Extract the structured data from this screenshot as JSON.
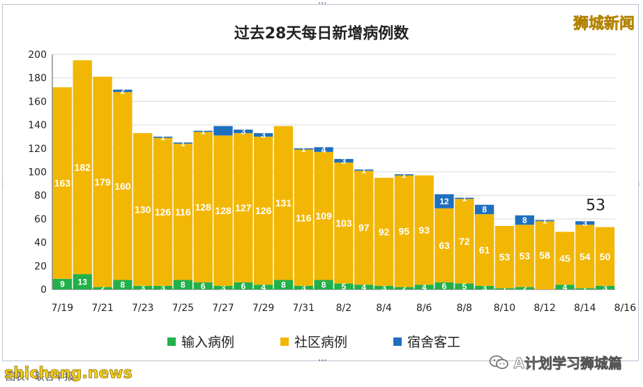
{
  "brand": "狮城新闻",
  "watermark": "shicheng.news",
  "source_note": "图表：联合早报",
  "wechat_account": "A计划学习狮城篇",
  "colors": {
    "imported": "#22b04a",
    "community": "#f2b705",
    "dormitory": "#1f6fbf",
    "label": "#ffffff",
    "grid": "#d9d9d9"
  },
  "chart_data": {
    "type": "bar",
    "stacked": true,
    "title": "过去28天每日新增病例数",
    "xlabel": "",
    "ylabel": "",
    "ylim": [
      0,
      200
    ],
    "yticks": [
      0,
      20,
      40,
      60,
      80,
      100,
      120,
      140,
      160,
      180,
      200
    ],
    "xtick_labels": [
      "7/19",
      "7/21",
      "7/23",
      "7/25",
      "7/27",
      "7/29",
      "7/31",
      "8/2",
      "8/4",
      "8/6",
      "8/8",
      "8/10",
      "8/12",
      "8/14",
      "8/16"
    ],
    "categories": [
      "7/19",
      "7/20",
      "7/21",
      "7/22",
      "7/23",
      "7/24",
      "7/25",
      "7/26",
      "7/27",
      "7/28",
      "7/29",
      "7/30",
      "7/31",
      "8/1",
      "8/2",
      "8/3",
      "8/4",
      "8/5",
      "8/6",
      "8/7",
      "8/8",
      "8/9",
      "8/10",
      "8/11",
      "8/12",
      "8/13",
      "8/14",
      "8/15"
    ],
    "legend_position": "bottom",
    "series": [
      {
        "name": "输入病例",
        "values": [
          9,
          13,
          2,
          8,
          3,
          3,
          8,
          6,
          3,
          6,
          4,
          8,
          3,
          8,
          5,
          4,
          3,
          2,
          4,
          6,
          5,
          3,
          1,
          2,
          0,
          4,
          1,
          3
        ]
      },
      {
        "name": "社区病例",
        "values": [
          163,
          182,
          179,
          160,
          130,
          126,
          116,
          128,
          128,
          127,
          126,
          131,
          116,
          109,
          103,
          97,
          92,
          95,
          93,
          63,
          72,
          61,
          53,
          53,
          58,
          45,
          54,
          50
        ]
      },
      {
        "name": "宿舍客工",
        "values": [
          0,
          0,
          0,
          2,
          0,
          1,
          1,
          1,
          8,
          3,
          3,
          0,
          1,
          4,
          3,
          1,
          0,
          1,
          0,
          12,
          1,
          8,
          0,
          8,
          1,
          0,
          3,
          0
        ]
      }
    ],
    "data_labels": {
      "输入病例": [
        "9",
        "13",
        "2",
        "8",
        "3",
        "3",
        "8",
        "6",
        "3",
        "6",
        "4",
        "8",
        "3",
        "8",
        "5",
        "4",
        "3",
        "2",
        "4",
        "6",
        "5",
        "3",
        "1",
        "2",
        "",
        "4",
        "1",
        "3"
      ],
      "社区病例": [
        "163",
        "182",
        "179",
        "160",
        "130",
        "126",
        "116",
        "128",
        "128",
        "127",
        "126",
        "131",
        "116",
        "109",
        "103",
        "97",
        "92",
        "95",
        "93",
        "63",
        "72",
        "61",
        "53",
        "53",
        "58",
        "45",
        "54",
        "50"
      ],
      "宿舍客工": [
        "",
        "",
        "",
        "2",
        "",
        "1",
        "1",
        "1",
        "",
        "3",
        "3",
        "",
        "1",
        "4",
        "3",
        "1",
        "",
        "1",
        "",
        "12",
        "1",
        "8",
        "",
        "8",
        "1",
        "",
        "3",
        ""
      ]
    },
    "annotation": "53"
  }
}
